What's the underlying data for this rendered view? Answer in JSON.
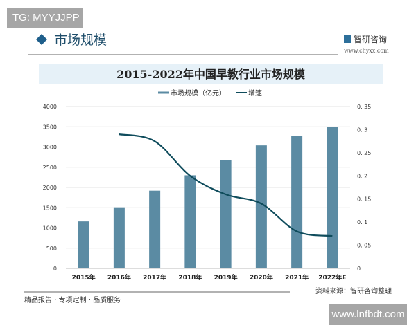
{
  "watermark_tags": {
    "top_left": "TG: MYYJJPP",
    "bottom_right": "www.lnfbdt.com"
  },
  "header": {
    "section_title": "市场规模",
    "brand_name": "智研咨询",
    "brand_url": "www.chyxx.com"
  },
  "footer": {
    "slogan": "精品报告 · 专项定制 · 品质服务",
    "source": "资料来源：智研咨询整理"
  },
  "colors": {
    "bar": "#5b8ba3",
    "line": "#0f4c5c",
    "title_band": "#e6f1f8",
    "accent": "#1f5f8b"
  },
  "chart_data": {
    "type": "bar+line",
    "title": "2015-2022年中国早教行业市场规模",
    "categories": [
      "2015年",
      "2016年",
      "2017年",
      "2018年",
      "2019年",
      "2020年",
      "2021年",
      "2022年E"
    ],
    "series": [
      {
        "name": "市场规模（亿元）",
        "type": "bar",
        "axis": "left",
        "values": [
          1160,
          1510,
          1920,
          2300,
          2680,
          3040,
          3280,
          3500
        ]
      },
      {
        "name": "增速",
        "type": "line",
        "axis": "right",
        "values": [
          null,
          0.29,
          0.275,
          0.2,
          0.16,
          0.14,
          0.08,
          0.07
        ]
      }
    ],
    "y_left": {
      "range": [
        0,
        4000
      ],
      "ticks": [
        "0",
        "500",
        "1000",
        "1500",
        "2000",
        "2500",
        "3000",
        "3500",
        "4000"
      ]
    },
    "y_right": {
      "range": [
        0,
        0.35
      ],
      "ticks": [
        "0",
        "0. 05",
        "0. 1",
        "0. 15",
        "0. 2",
        "0. 25",
        "0. 3",
        "0. 35"
      ]
    },
    "grid": true,
    "legend": "top-center"
  }
}
